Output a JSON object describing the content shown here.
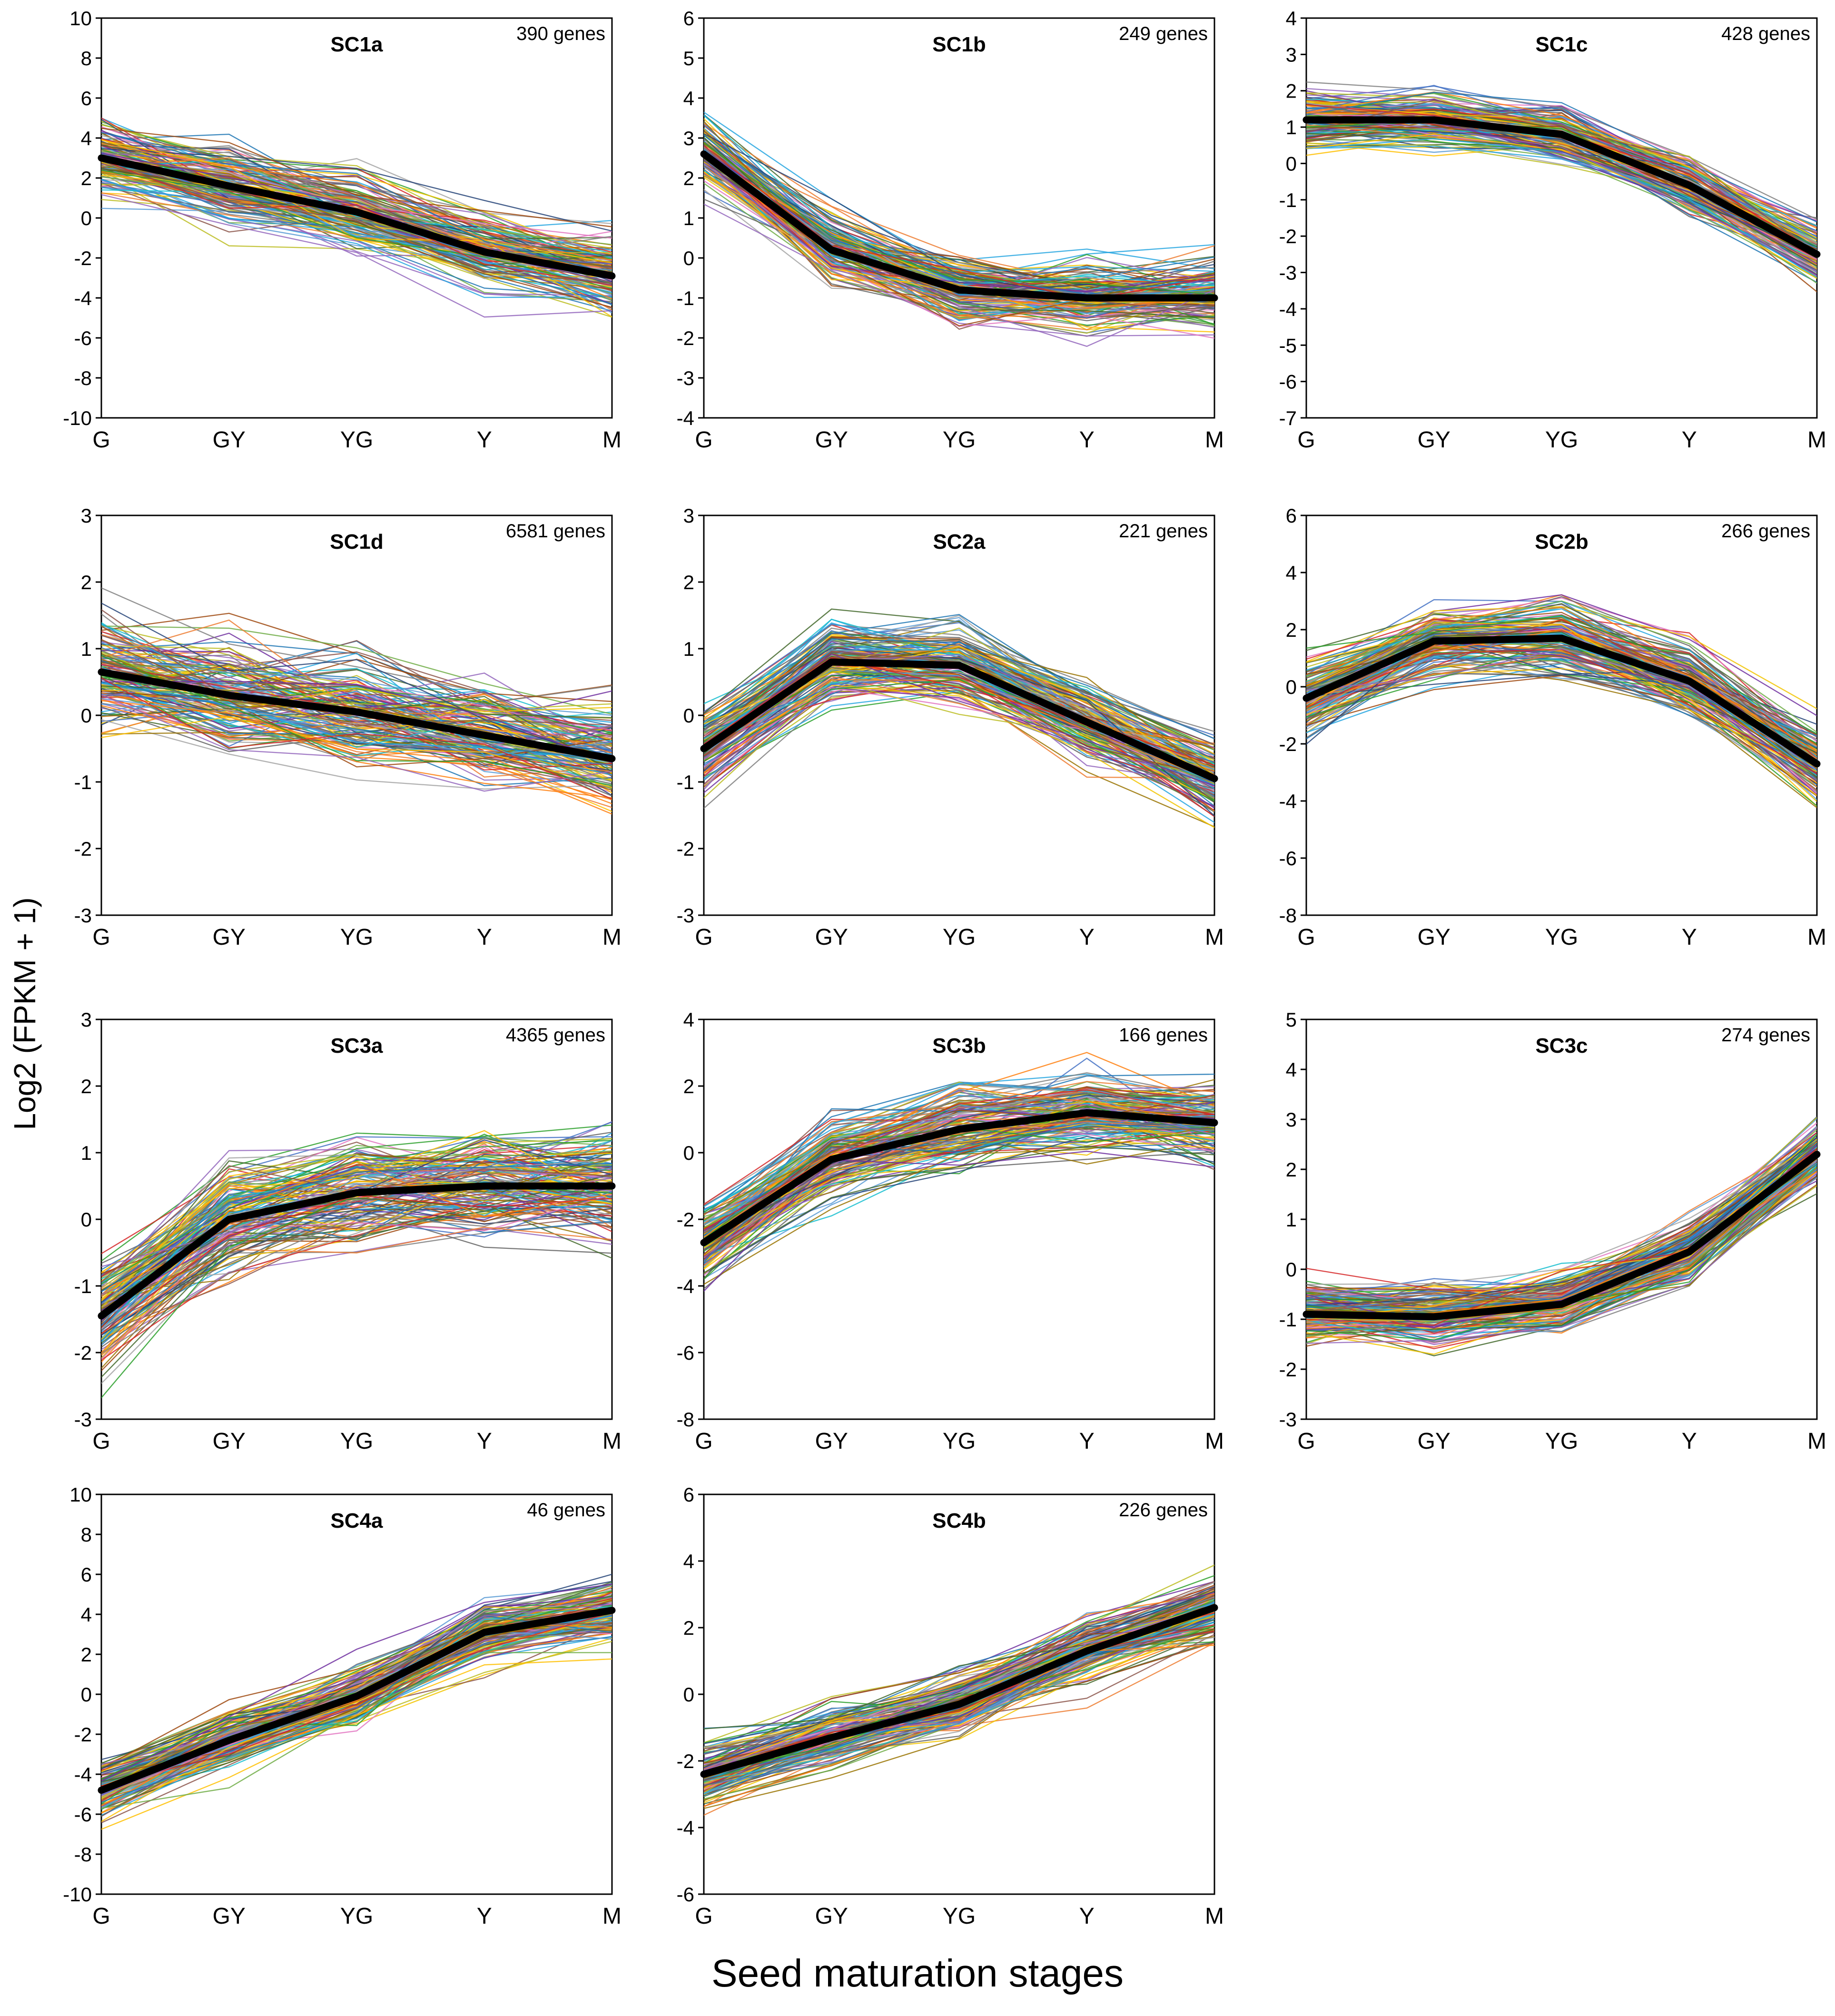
{
  "figure": {
    "y_axis_label": "Log2 (FPKM + 1)",
    "x_axis_label": "Seed maturation stages",
    "mean_line_color": "#000000",
    "palette": [
      "#1f77b4",
      "#ff7f0e",
      "#2ca02c",
      "#d62728",
      "#9467bd",
      "#8c564b",
      "#e377c2",
      "#7f7f7f",
      "#bcbd22",
      "#17becf",
      "#f2c400",
      "#4472c4",
      "#ed7d31",
      "#70ad47",
      "#5b9bd5",
      "#a5a5a5",
      "#264478",
      "#9e480e",
      "#636363",
      "#997300",
      "#43682b",
      "#26a6e0",
      "#ffc000",
      "#7030a0"
    ]
  },
  "chart_data": [
    {
      "type": "line",
      "title": "SC1a",
      "gene_count": "390 genes",
      "categories": [
        "G",
        "GY",
        "YG",
        "Y",
        "M"
      ],
      "mean": [
        3.0,
        1.6,
        0.3,
        -1.7,
        -2.9
      ],
      "spread": 1.2,
      "ylim": [
        -10,
        10
      ],
      "yticks": [
        10,
        8,
        6,
        4,
        2,
        0,
        -2,
        -4,
        -6,
        -8,
        -10
      ]
    },
    {
      "type": "line",
      "title": "SC1b",
      "gene_count": "249 genes",
      "categories": [
        "G",
        "GY",
        "YG",
        "Y",
        "M"
      ],
      "mean": [
        2.6,
        0.2,
        -0.8,
        -1.0,
        -1.0
      ],
      "spread": 0.6,
      "ylim": [
        -4,
        6
      ],
      "yticks": [
        6,
        5,
        4,
        3,
        2,
        1,
        0,
        -1,
        -2,
        -3,
        -4
      ]
    },
    {
      "type": "line",
      "title": "SC1c",
      "gene_count": "428 genes",
      "categories": [
        "G",
        "GY",
        "YG",
        "Y",
        "M"
      ],
      "mean": [
        1.2,
        1.2,
        0.8,
        -0.6,
        -2.5
      ],
      "spread": 0.5,
      "ylim": [
        -7,
        4
      ],
      "yticks": [
        4,
        3,
        2,
        1,
        0,
        -1,
        -2,
        -3,
        -4,
        -5,
        -6,
        -7
      ]
    },
    {
      "type": "line",
      "title": "SC1d",
      "gene_count": "6581 genes",
      "categories": [
        "G",
        "GY",
        "YG",
        "Y",
        "M"
      ],
      "mean": [
        0.65,
        0.3,
        0.05,
        -0.3,
        -0.65
      ],
      "spread": 0.5,
      "ylim": [
        -3,
        3
      ],
      "yticks": [
        3,
        2,
        1,
        0,
        -1,
        -2,
        -3
      ]
    },
    {
      "type": "line",
      "title": "SC2a",
      "gene_count": "221 genes",
      "categories": [
        "G",
        "GY",
        "YG",
        "Y",
        "M"
      ],
      "mean": [
        -0.5,
        0.8,
        0.75,
        -0.1,
        -0.95
      ],
      "spread": 0.4,
      "ylim": [
        -3,
        3
      ],
      "yticks": [
        3,
        2,
        1,
        0,
        -1,
        -2,
        -3
      ]
    },
    {
      "type": "line",
      "title": "SC2b",
      "gene_count": "266 genes",
      "categories": [
        "G",
        "GY",
        "YG",
        "Y",
        "M"
      ],
      "mean": [
        -0.4,
        1.6,
        1.7,
        0.2,
        -2.7
      ],
      "spread": 0.8,
      "ylim": [
        -8,
        6
      ],
      "yticks": [
        6,
        4,
        2,
        0,
        -2,
        -4,
        -6,
        -8
      ]
    },
    {
      "type": "line",
      "title": "SC3a",
      "gene_count": "4365 genes",
      "categories": [
        "G",
        "GY",
        "YG",
        "Y",
        "M"
      ],
      "mean": [
        -1.45,
        0.0,
        0.4,
        0.5,
        0.5
      ],
      "spread": 0.5,
      "ylim": [
        -3,
        3
      ],
      "yticks": [
        3,
        2,
        1,
        0,
        -1,
        -2,
        -3
      ]
    },
    {
      "type": "line",
      "title": "SC3b",
      "gene_count": "166 genes",
      "categories": [
        "G",
        "GY",
        "YG",
        "Y",
        "M"
      ],
      "mean": [
        -2.7,
        -0.2,
        0.7,
        1.2,
        0.9
      ],
      "spread": 0.8,
      "ylim": [
        -8,
        4
      ],
      "yticks": [
        4,
        2,
        0,
        -2,
        -4,
        -6,
        -8
      ]
    },
    {
      "type": "line",
      "title": "SC3c",
      "gene_count": "274 genes",
      "categories": [
        "G",
        "GY",
        "YG",
        "Y",
        "M"
      ],
      "mean": [
        -0.9,
        -0.95,
        -0.7,
        0.35,
        2.3
      ],
      "spread": 0.4,
      "ylim": [
        -3,
        5
      ],
      "yticks": [
        5,
        4,
        3,
        2,
        1,
        0,
        -1,
        -2,
        -3
      ]
    },
    {
      "type": "line",
      "title": "SC4a",
      "gene_count": "46 genes",
      "categories": [
        "G",
        "GY",
        "YG",
        "Y",
        "M"
      ],
      "mean": [
        -4.8,
        -2.3,
        -0.1,
        3.1,
        4.2
      ],
      "spread": 1.0,
      "ylim": [
        -10,
        10
      ],
      "yticks": [
        10,
        8,
        6,
        4,
        2,
        0,
        -2,
        -4,
        -6,
        -8,
        -10
      ]
    },
    {
      "type": "line",
      "title": "SC4b",
      "gene_count": "226 genes",
      "categories": [
        "G",
        "GY",
        "YG",
        "Y",
        "M"
      ],
      "mean": [
        -2.4,
        -1.3,
        -0.3,
        1.3,
        2.6
      ],
      "spread": 0.6,
      "ylim": [
        -6,
        6
      ],
      "yticks": [
        6,
        4,
        2,
        0,
        -2,
        -4,
        -6
      ]
    }
  ]
}
